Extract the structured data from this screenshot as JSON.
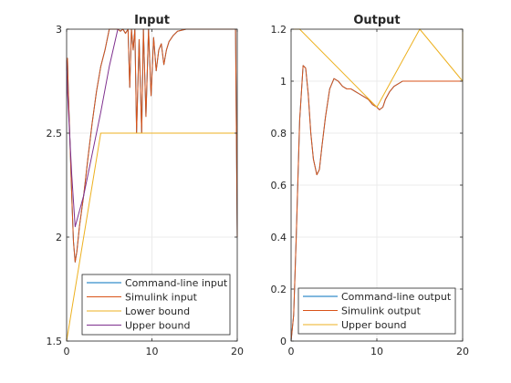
{
  "figure": {
    "background": "#ffffff",
    "axes_color": "#262626",
    "grid_color": "#ebebeb"
  },
  "chart_data": [
    {
      "type": "line",
      "title": "Input",
      "xlabel": "",
      "ylabel": "",
      "xlim": [
        0,
        20
      ],
      "ylim": [
        1.5,
        3
      ],
      "xticks": [
        0,
        10,
        20
      ],
      "yticks": [
        1.5,
        2,
        2.5,
        3
      ],
      "xtick_labels": [
        "0",
        "10",
        "20"
      ],
      "ytick_labels": [
        "1.5",
        "2",
        "2.5",
        "3"
      ],
      "grid": true,
      "legend_position": "bottom-right",
      "series": [
        {
          "name": "Command-line input",
          "color": "#0072bd",
          "x": [
            0,
            0.1,
            0.2,
            0.4,
            0.6,
            0.8,
            1.0,
            1.2,
            1.5,
            2,
            2.5,
            3,
            3.5,
            4,
            4.5,
            5,
            5.5,
            6,
            6.3,
            6.6,
            6.9,
            7.2,
            7.4,
            7.6,
            7.8,
            8.0,
            8.2,
            8.5,
            8.8,
            9.0,
            9.3,
            9.6,
            9.9,
            10.2,
            10.5,
            10.8,
            11.1,
            11.4,
            11.7,
            12,
            12.5,
            13,
            14,
            15,
            16,
            17,
            18,
            19,
            19.8,
            19.9,
            20
          ],
          "y": [
            2.8,
            2.86,
            2.7,
            2.45,
            2.2,
            1.98,
            1.88,
            1.93,
            2.05,
            2.2,
            2.38,
            2.55,
            2.7,
            2.82,
            2.9,
            3.0,
            3.0,
            3.0,
            2.99,
            3.0,
            2.98,
            3.0,
            2.72,
            3.0,
            2.9,
            3.0,
            2.5,
            2.95,
            2.5,
            3.0,
            2.58,
            3.0,
            2.68,
            2.96,
            2.8,
            2.9,
            2.93,
            2.83,
            2.9,
            2.94,
            2.97,
            2.99,
            3.0,
            3.0,
            3.0,
            3.0,
            3.0,
            3.0,
            3.0,
            2.5,
            2.0
          ]
        },
        {
          "name": "Simulink input",
          "color": "#d95319",
          "x": [
            0,
            0.1,
            0.2,
            0.4,
            0.6,
            0.8,
            1.0,
            1.2,
            1.5,
            2,
            2.5,
            3,
            3.5,
            4,
            4.5,
            5,
            5.5,
            6,
            6.3,
            6.6,
            6.9,
            7.2,
            7.4,
            7.6,
            7.8,
            8.0,
            8.2,
            8.5,
            8.8,
            9.0,
            9.3,
            9.6,
            9.9,
            10.2,
            10.5,
            10.8,
            11.1,
            11.4,
            11.7,
            12,
            12.5,
            13,
            14,
            15,
            16,
            17,
            18,
            19,
            19.8,
            19.9,
            20
          ],
          "y": [
            2.8,
            2.86,
            2.7,
            2.45,
            2.2,
            1.98,
            1.88,
            1.93,
            2.05,
            2.2,
            2.38,
            2.55,
            2.7,
            2.82,
            2.9,
            3.0,
            3.0,
            3.0,
            2.99,
            3.0,
            2.98,
            3.0,
            2.72,
            3.0,
            2.9,
            3.0,
            2.5,
            2.95,
            2.5,
            3.0,
            2.58,
            3.0,
            2.68,
            2.96,
            2.8,
            2.9,
            2.93,
            2.83,
            2.9,
            2.94,
            2.97,
            2.99,
            3.0,
            3.0,
            3.0,
            3.0,
            3.0,
            3.0,
            3.0,
            2.5,
            2.0
          ]
        },
        {
          "name": "Lower bound",
          "color": "#edb120",
          "x": [
            0,
            4,
            20
          ],
          "y": [
            1.5,
            2.5,
            2.5
          ]
        },
        {
          "name": "Upper bound",
          "color": "#7e2f8e",
          "x": [
            0,
            0.1,
            0.6,
            1.0,
            2,
            3,
            4,
            5,
            6
          ],
          "y": [
            2.85,
            2.7,
            2.3,
            2.05,
            2.2,
            2.4,
            2.6,
            2.82,
            3.0
          ]
        }
      ]
    },
    {
      "type": "line",
      "title": "Output",
      "xlabel": "",
      "ylabel": "",
      "xlim": [
        0,
        20
      ],
      "ylim": [
        0,
        1.2
      ],
      "xticks": [
        0,
        10,
        20
      ],
      "yticks": [
        0,
        0.2,
        0.4,
        0.6,
        0.8,
        1,
        1.2
      ],
      "xtick_labels": [
        "0",
        "10",
        "20"
      ],
      "ytick_labels": [
        "0",
        "0.2",
        "0.4",
        "0.6",
        "0.8",
        "1",
        "1.2"
      ],
      "grid": true,
      "legend_position": "bottom-right",
      "series": [
        {
          "name": "Command-line output",
          "color": "#0072bd",
          "x": [
            0,
            0.3,
            0.6,
            1.0,
            1.4,
            1.7,
            2.0,
            2.3,
            2.6,
            3.0,
            3.3,
            3.6,
            4.0,
            4.5,
            5.0,
            5.5,
            6.0,
            6.5,
            7.0,
            7.5,
            8.0,
            8.5,
            9.0,
            9.5,
            10.0,
            10.3,
            10.7,
            11.0,
            11.5,
            12.0,
            13.0,
            14.0,
            15.0,
            16.0,
            17.0,
            18.0,
            19.0,
            20.0
          ],
          "y": [
            0,
            0.1,
            0.4,
            0.85,
            1.06,
            1.05,
            0.95,
            0.8,
            0.7,
            0.64,
            0.66,
            0.75,
            0.86,
            0.97,
            1.01,
            1.0,
            0.98,
            0.97,
            0.97,
            0.96,
            0.95,
            0.94,
            0.93,
            0.91,
            0.9,
            0.89,
            0.9,
            0.93,
            0.96,
            0.98,
            1.0,
            1.0,
            1.0,
            1.0,
            1.0,
            1.0,
            1.0,
            1.0
          ]
        },
        {
          "name": "Simulink output",
          "color": "#d95319",
          "x": [
            0,
            0.3,
            0.6,
            1.0,
            1.4,
            1.7,
            2.0,
            2.3,
            2.6,
            3.0,
            3.3,
            3.6,
            4.0,
            4.5,
            5.0,
            5.5,
            6.0,
            6.5,
            7.0,
            7.5,
            8.0,
            8.5,
            9.0,
            9.5,
            10.0,
            10.3,
            10.7,
            11.0,
            11.5,
            12.0,
            13.0,
            14.0,
            15.0,
            16.0,
            17.0,
            18.0,
            19.0,
            20.0
          ],
          "y": [
            0,
            0.1,
            0.4,
            0.85,
            1.06,
            1.05,
            0.95,
            0.8,
            0.7,
            0.64,
            0.66,
            0.75,
            0.86,
            0.97,
            1.01,
            1.0,
            0.98,
            0.97,
            0.97,
            0.96,
            0.95,
            0.94,
            0.93,
            0.91,
            0.9,
            0.89,
            0.9,
            0.93,
            0.96,
            0.98,
            1.0,
            1.0,
            1.0,
            1.0,
            1.0,
            1.0,
            1.0,
            1.0
          ]
        },
        {
          "name": "Upper bound",
          "color": "#edb120",
          "x": [
            0,
            1,
            10,
            15,
            20,
            20
          ],
          "y": [
            1.2,
            1.2,
            0.9,
            1.2,
            1.0,
            1.2
          ]
        }
      ]
    }
  ]
}
